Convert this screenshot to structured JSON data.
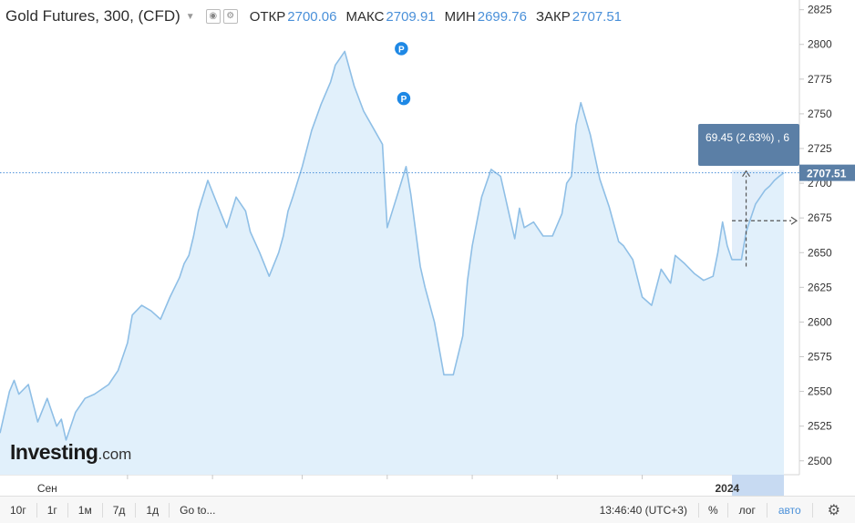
{
  "legend": {
    "title": "Gold Futures, 300, (CFD)",
    "open_label": "ОТКР",
    "open_value": "2700.06",
    "high_label": "МАКС",
    "high_value": "2709.91",
    "low_label": "МИН",
    "low_value": "2699.76",
    "close_label": "ЗАКР",
    "close_value": "2707.51"
  },
  "logo": {
    "main": "Investing",
    "suffix": ".com"
  },
  "measure": {
    "label": "69.45 (2.63%) , 6"
  },
  "last_price": "2707.51",
  "markers": [
    "P",
    "P"
  ],
  "toolbar": {
    "timeframes": [
      "10г",
      "1г",
      "1м",
      "7д",
      "1д"
    ],
    "goto": "Go to...",
    "clock": "13:46:40 (UTC+3)",
    "percent": "%",
    "log": "лог",
    "auto": "авто"
  },
  "colors": {
    "line": "#8fbfe6",
    "fill": "#e1f0fb",
    "accent": "#4a90d9",
    "price_tag": "#5b7fa6"
  },
  "chart_data": {
    "type": "area",
    "title": "Gold Futures, 300, (CFD)",
    "xlabel": "",
    "ylabel": "",
    "x_tick_labels": [
      {
        "label": "Сен",
        "x": 10
      },
      {
        "label": "2024",
        "x": 154
      }
    ],
    "x_range": [
      0,
      166
    ],
    "ylim": [
      2490,
      2832
    ],
    "y_ticks": [
      2500,
      2525,
      2550,
      2575,
      2600,
      2625,
      2650,
      2675,
      2700,
      2725,
      2750,
      2775,
      2800,
      2825
    ],
    "grid": false,
    "series": [
      {
        "name": "",
        "x": [
          0,
          2,
          3,
          4,
          6,
          8,
          10,
          12,
          13,
          14,
          16,
          18,
          20,
          23,
          25,
          27,
          28,
          30,
          32,
          34,
          36,
          38,
          39,
          40,
          41,
          42,
          44,
          46,
          48,
          50,
          52,
          53,
          55,
          57,
          59,
          60,
          61,
          62,
          64,
          66,
          68,
          70,
          71,
          73,
          75,
          77,
          79,
          81,
          82,
          84,
          86,
          87,
          89,
          90,
          92,
          94,
          96,
          98,
          99,
          100,
          102,
          104,
          106,
          108,
          109,
          110,
          111,
          113,
          115,
          117,
          119,
          120,
          121,
          122,
          123,
          125,
          127,
          129,
          131,
          132,
          134,
          136,
          138,
          140,
          142,
          143,
          145,
          147,
          149,
          151,
          152,
          153,
          154,
          155,
          157,
          158,
          159,
          160,
          161,
          162,
          163,
          164,
          165,
          166
        ],
        "values": [
          2520,
          2550,
          2558,
          2548,
          2555,
          2528,
          2545,
          2525,
          2530,
          2515,
          2535,
          2545,
          2548,
          2555,
          2565,
          2585,
          2605,
          2612,
          2608,
          2602,
          2618,
          2632,
          2642,
          2648,
          2662,
          2680,
          2702,
          2685,
          2668,
          2690,
          2680,
          2665,
          2650,
          2633,
          2650,
          2662,
          2680,
          2690,
          2712,
          2738,
          2757,
          2773,
          2785,
          2795,
          2770,
          2752,
          2740,
          2728,
          2668,
          2690,
          2712,
          2692,
          2640,
          2625,
          2600,
          2562,
          2562,
          2590,
          2630,
          2655,
          2690,
          2710,
          2705,
          2675,
          2660,
          2682,
          2668,
          2672,
          2662,
          2662,
          2678,
          2700,
          2705,
          2742,
          2758,
          2735,
          2703,
          2683,
          2658,
          2655,
          2645,
          2618,
          2612,
          2638,
          2628,
          2648,
          2642,
          2635,
          2630,
          2633,
          2650,
          2672,
          2655,
          2645,
          2645,
          2665,
          2675,
          2685,
          2690,
          2695,
          2698,
          2702,
          2705,
          2707.51
        ]
      }
    ],
    "last_value": 2707.51,
    "measure_range": {
      "x_start": 155,
      "x_end": 166,
      "y_low": 2640,
      "y_high": 2709.45
    }
  }
}
